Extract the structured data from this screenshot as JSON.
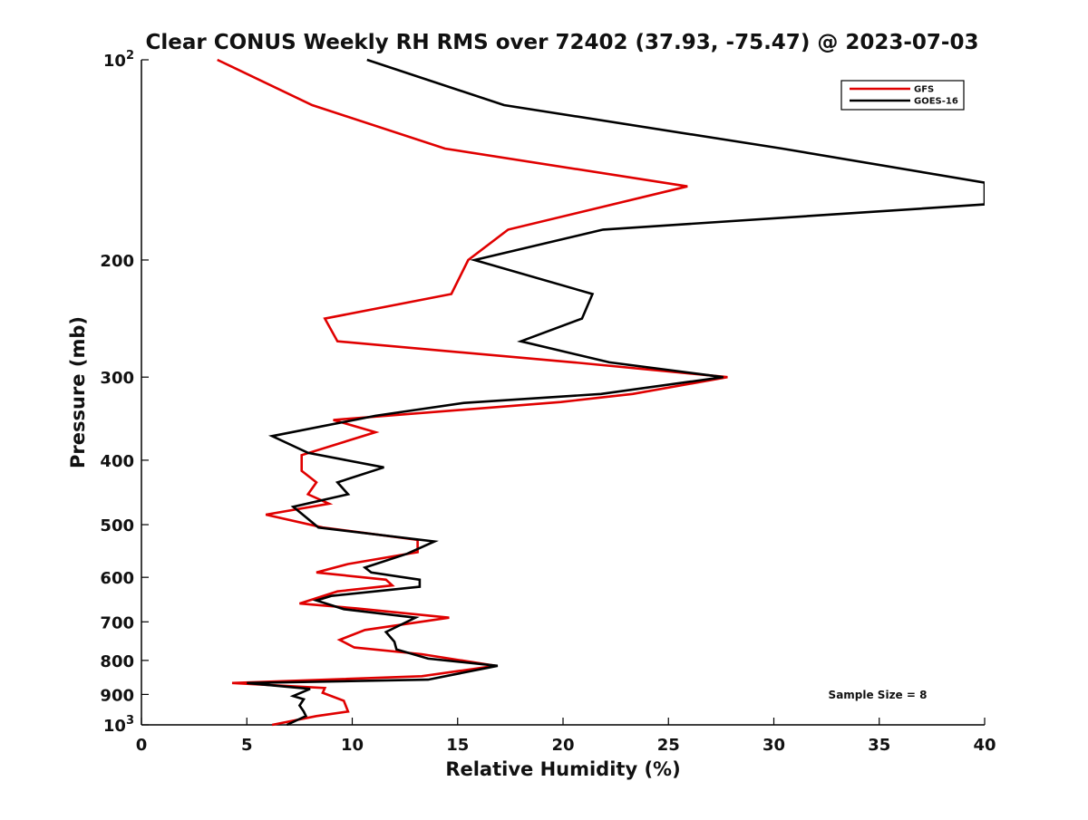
{
  "chart_data": {
    "type": "line",
    "title": "Clear CONUS Weekly RH RMS over 72402 (37.93, -75.47) @ 2023-07-03",
    "xlabel": "Relative Humidity (%)",
    "ylabel": "Pressure (mb)",
    "xlim": [
      0,
      40
    ],
    "ylim": [
      100,
      1000
    ],
    "yscale": "log",
    "y_reversed": true,
    "grid": false,
    "x_ticks": [
      0,
      5,
      10,
      15,
      20,
      25,
      30,
      35,
      40
    ],
    "x_tick_labels": [
      "0",
      "5",
      "10",
      "15",
      "20",
      "25",
      "30",
      "35",
      "40"
    ],
    "y_ticks": [
      100,
      200,
      300,
      400,
      500,
      600,
      700,
      800,
      900,
      1000
    ],
    "y_tick_labels": [
      {
        "base": "10",
        "exp": "2"
      },
      {
        "base": "200",
        "exp": ""
      },
      {
        "base": "300",
        "exp": ""
      },
      {
        "base": "400",
        "exp": ""
      },
      {
        "base": "500",
        "exp": ""
      },
      {
        "base": "600",
        "exp": ""
      },
      {
        "base": "700",
        "exp": ""
      },
      {
        "base": "800",
        "exp": ""
      },
      {
        "base": "900",
        "exp": ""
      },
      {
        "base": "10",
        "exp": "3"
      }
    ],
    "legend": {
      "placement": "top-right",
      "entries": [
        {
          "name": "GFS",
          "color": "#e00000"
        },
        {
          "name": "GOES-16",
          "color": "#000000"
        }
      ]
    },
    "annotation": "Sample Size = 8",
    "series": [
      {
        "name": "GFS",
        "color": "#e00000",
        "points": [
          [
            3.6,
            100
          ],
          [
            8.1,
            117
          ],
          [
            14.4,
            136
          ],
          [
            25.9,
            155
          ],
          [
            17.4,
            180
          ],
          [
            15.5,
            200
          ],
          [
            14.7,
            225
          ],
          [
            8.7,
            245
          ],
          [
            9.3,
            265
          ],
          [
            20.5,
            285
          ],
          [
            27.8,
            300
          ],
          [
            23.3,
            318
          ],
          [
            19.9,
            327
          ],
          [
            9.1,
            348
          ],
          [
            11.1,
            363
          ],
          [
            7.6,
            393
          ],
          [
            7.6,
            415
          ],
          [
            8.3,
            432
          ],
          [
            7.9,
            450
          ],
          [
            8.9,
            465
          ],
          [
            5.9,
            483
          ],
          [
            8.6,
            505
          ],
          [
            13.1,
            527
          ],
          [
            13.1,
            550
          ],
          [
            9.8,
            573
          ],
          [
            8.3,
            590
          ],
          [
            11.6,
            605
          ],
          [
            11.9,
            617
          ],
          [
            9.3,
            630
          ],
          [
            7.5,
            657
          ],
          [
            10.2,
            668
          ],
          [
            14.6,
            690
          ],
          [
            10.6,
            720
          ],
          [
            9.4,
            745
          ],
          [
            10.1,
            765
          ],
          [
            13.3,
            783
          ],
          [
            16.8,
            815
          ],
          [
            13.3,
            845
          ],
          [
            4.3,
            865
          ],
          [
            8.7,
            880
          ],
          [
            8.6,
            895
          ],
          [
            9.6,
            920
          ],
          [
            9.8,
            955
          ],
          [
            8.3,
            970
          ],
          [
            6.2,
            1000
          ]
        ]
      },
      {
        "name": "GOES-16",
        "color": "#000000",
        "points": [
          [
            10.7,
            100
          ],
          [
            17.2,
            117
          ],
          [
            30.4,
            136
          ],
          [
            40.0,
            153
          ],
          [
            40.0,
            165
          ],
          [
            21.9,
            180
          ],
          [
            15.8,
            200
          ],
          [
            21.4,
            225
          ],
          [
            20.9,
            245
          ],
          [
            18.0,
            265
          ],
          [
            22.2,
            285
          ],
          [
            27.6,
            300
          ],
          [
            21.8,
            318
          ],
          [
            15.3,
            328
          ],
          [
            11.1,
            343
          ],
          [
            6.2,
            368
          ],
          [
            7.9,
            390
          ],
          [
            11.5,
            410
          ],
          [
            9.3,
            432
          ],
          [
            9.8,
            450
          ],
          [
            7.2,
            470
          ],
          [
            8.4,
            505
          ],
          [
            13.9,
            530
          ],
          [
            12.6,
            553
          ],
          [
            10.6,
            580
          ],
          [
            10.9,
            590
          ],
          [
            13.2,
            605
          ],
          [
            13.2,
            620
          ],
          [
            9.0,
            640
          ],
          [
            8.3,
            650
          ],
          [
            9.6,
            670
          ],
          [
            13.0,
            690
          ],
          [
            11.6,
            725
          ],
          [
            12.0,
            750
          ],
          [
            12.1,
            770
          ],
          [
            13.6,
            795
          ],
          [
            16.9,
            815
          ],
          [
            13.6,
            855
          ],
          [
            5.0,
            865
          ],
          [
            8.0,
            883
          ],
          [
            7.2,
            905
          ],
          [
            7.7,
            915
          ],
          [
            7.5,
            935
          ],
          [
            7.7,
            955
          ],
          [
            7.8,
            970
          ],
          [
            6.9,
            1000
          ]
        ]
      }
    ]
  }
}
